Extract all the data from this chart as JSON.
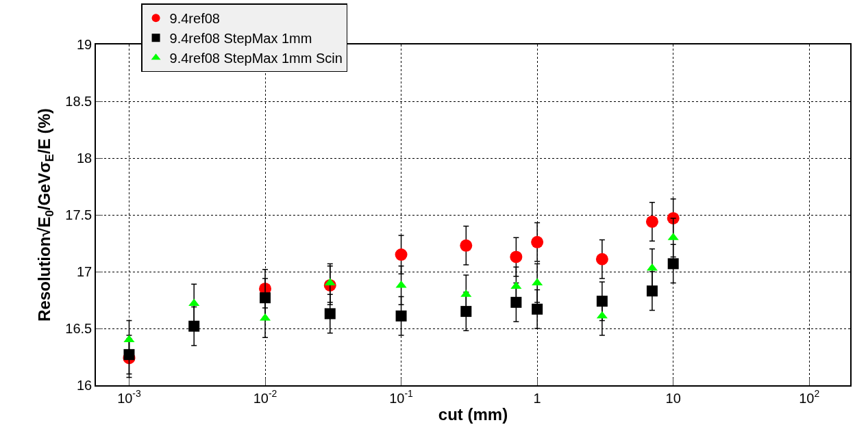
{
  "chart_data": {
    "type": "scatter",
    "xlabel": "cut (mm)",
    "ylabel": "Resolution√E$_{0}$/GeVσ$_{E}$/E (%)",
    "x": [
      0.001,
      0.003,
      0.01,
      0.03,
      0.1,
      0.3,
      0.7,
      1,
      3,
      7,
      10
    ],
    "series": [
      {
        "name": "9.4ref08",
        "color": "#ff0000",
        "marker": "circle",
        "values": [
          16.24,
          null,
          16.85,
          16.88,
          17.15,
          17.23,
          17.13,
          17.26,
          17.11,
          17.44,
          17.47
        ],
        "errors": [
          0.17,
          null,
          0.17,
          0.17,
          0.17,
          0.17,
          0.17,
          0.17,
          0.17,
          0.17,
          0.17
        ]
      },
      {
        "name": "9.4ref08 StepMax 1mm",
        "color": "#000000",
        "marker": "square",
        "values": [
          16.27,
          16.52,
          16.77,
          16.63,
          16.61,
          16.65,
          16.73,
          16.67,
          16.74,
          16.83,
          17.07
        ],
        "errors": [
          0.17,
          0.17,
          0.17,
          0.17,
          0.17,
          0.17,
          0.17,
          0.17,
          0.17,
          0.17,
          0.17
        ]
      },
      {
        "name": "9.4ref08 StepMax 1mm Scin",
        "color": "#00ff00",
        "marker": "triangle",
        "values": [
          16.4,
          16.72,
          16.59,
          16.9,
          16.88,
          16.8,
          16.87,
          16.9,
          16.61,
          17.03,
          17.3
        ],
        "errors": [
          0.17,
          0.17,
          0.17,
          0.17,
          0.17,
          0.17,
          0.17,
          0.17,
          0.17,
          0.17,
          0.17
        ]
      }
    ],
    "log": "x",
    "xlim": [
      0.00057,
      200
    ],
    "xticks": [
      {
        "value": 0.001,
        "label": "10$^{-3}$"
      },
      {
        "value": 0.01,
        "label": "10$^{-2}$"
      },
      {
        "value": 0.1,
        "label": "10$^{-1}$"
      },
      1,
      10,
      {
        "value": 100,
        "label": "10$^{2}$"
      }
    ],
    "ylim": [
      16,
      19
    ],
    "yticks": [
      16,
      16.5,
      17,
      17.5,
      18,
      18.5,
      19
    ],
    "grid": true,
    "legend": "top left"
  }
}
